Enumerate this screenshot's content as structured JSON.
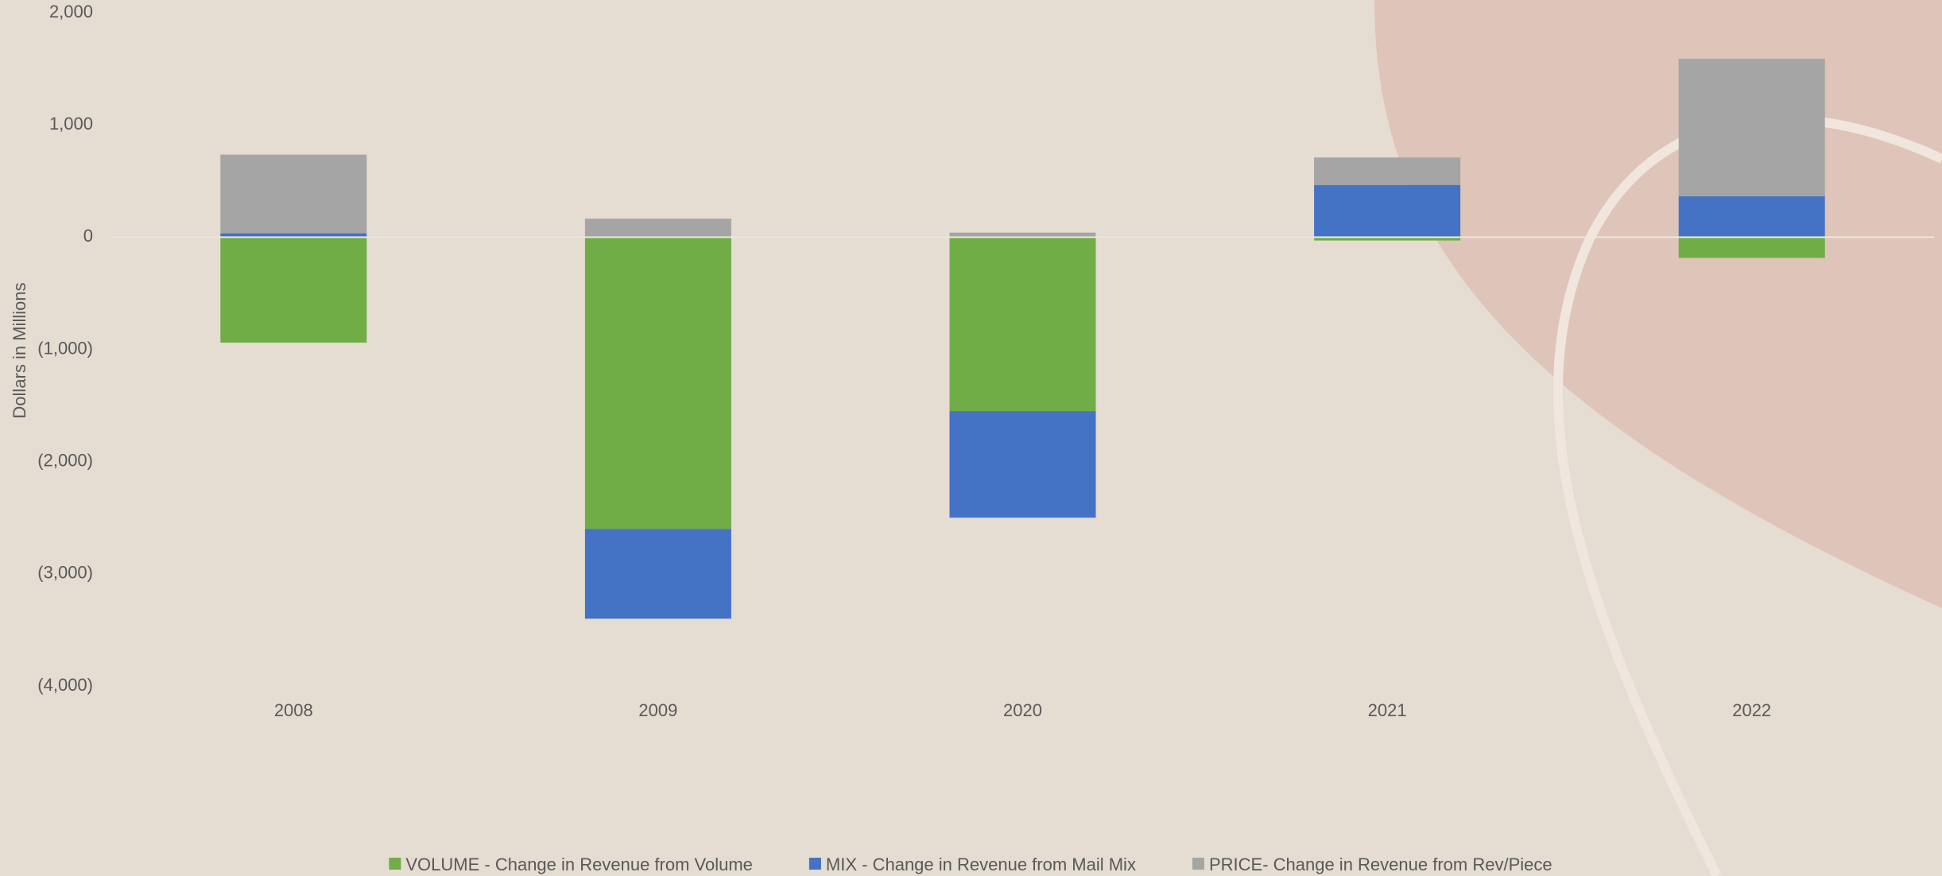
{
  "chart_data": {
    "type": "stacked-bar",
    "y_label": "Dollars in Millions",
    "categories": [
      "2008",
      "2009",
      "2020",
      "2021",
      "2022"
    ],
    "series": [
      {
        "name": "VOLUME - Change in Revenue from Volume",
        "color": "#70ad47",
        "values": [
          -940,
          -2600,
          -1550,
          -30,
          -185
        ]
      },
      {
        "name": "MIX - Change in Revenue from Mail Mix",
        "color": "#4472c4",
        "values": [
          35,
          -800,
          -950,
          465,
          365
        ]
      },
      {
        "name": "PRICE- Change in Revenue from Rev/Piece",
        "color": "#a5a5a5",
        "values": [
          700,
          165,
          40,
          245,
          1225
        ]
      }
    ],
    "ylim": [
      -4000,
      2000
    ],
    "yticks": [
      {
        "value": -4000,
        "label": "(4,000)"
      },
      {
        "value": -3000,
        "label": "(3,000)"
      },
      {
        "value": -2000,
        "label": "(2,000)"
      },
      {
        "value": -1000,
        "label": "(1,000)"
      },
      0,
      {
        "value": 1000,
        "label": "1,000"
      },
      {
        "value": 2000,
        "label": "2,000"
      }
    ],
    "grid": false,
    "legend": "bottom"
  }
}
